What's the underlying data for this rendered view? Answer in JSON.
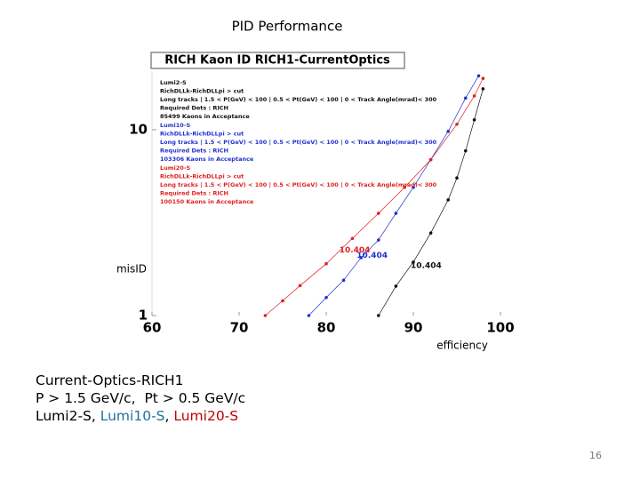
{
  "chart_data": {
    "type": "line",
    "title": "PID  Performance",
    "subtitle": "RICH Kaon ID   RICH1-CurrentOptics",
    "x_label": "efficiency",
    "y_label": "misID",
    "xlim": [
      60,
      100
    ],
    "ylim": [
      1,
      20
    ],
    "xticks": [
      60,
      70,
      80,
      90,
      100
    ],
    "yticks": [
      1,
      10
    ],
    "log_y": true,
    "grid": false,
    "series": [
      {
        "name": "Lumi2-S",
        "color": "#111111",
        "details": [
          "RichDLLk-RichDLLpi > cut",
          "Long tracks | 1.5 < P(GeV) < 100 | 0.5 < Pt(GeV) < 100 | 0 < Track Angle(mrad)< 300",
          "Required Dets : RICH",
          "85499 Kaons in Acceptance"
        ],
        "x": [
          86,
          88,
          90,
          92,
          94,
          95,
          96,
          97,
          98
        ],
        "values": [
          1.0,
          1.44,
          1.94,
          2.78,
          4.19,
          5.5,
          7.7,
          11.3,
          16.6
        ]
      },
      {
        "name": "Lumi10-S",
        "color": "#2233cc",
        "details": [
          "RichDLLk-RichDLLpi > cut",
          "Long tracks | 1.5 < P(GeV) < 100 | 0.5 < Pt(GeV) < 100 | 0 < Track Angle(mrad)< 300",
          "Required Dets : RICH",
          "103306 Kaons in Acceptance"
        ],
        "x": [
          78,
          80,
          82,
          84,
          86,
          88,
          90,
          92,
          94,
          96,
          97.5
        ],
        "values": [
          1.0,
          1.25,
          1.55,
          2.05,
          2.55,
          3.55,
          4.9,
          6.9,
          9.8,
          14.8,
          19.5
        ]
      },
      {
        "name": "Lumi20-S",
        "color": "#dd2222",
        "details": [
          "RichDLLk-RichDLLpi > cut",
          "Long tracks | 1.5 < P(GeV) < 100 | 0.5 < Pt(GeV) < 100 | 0 < Track Angle(mrad)< 300",
          "Required Dets : RICH",
          "100150 Kaons in Acceptance"
        ],
        "x": [
          73,
          75,
          77,
          80,
          83,
          86,
          89,
          92,
          95,
          97,
          98
        ],
        "values": [
          1.0,
          1.2,
          1.45,
          1.9,
          2.6,
          3.55,
          4.9,
          6.9,
          10.7,
          15.2,
          18.9
        ]
      }
    ],
    "annotations": [
      {
        "text": "10.404",
        "series": 2,
        "x": 81.5,
        "y": 2.25
      },
      {
        "text": "10.404",
        "series": 1,
        "x": 83.5,
        "y": 2.1
      },
      {
        "text": "10.404",
        "series": 0,
        "x": 89.7,
        "y": 1.85
      }
    ]
  },
  "caption": {
    "lines": [
      "Current-Optics-RICH1",
      "P > 1.5 GeV/c,  Pt > 0.5 GeV/c"
    ],
    "parts": [
      {
        "text": "Lumi2-S, ",
        "color": "#000000"
      },
      {
        "text": "Lumi10-S",
        "color": "#1f6fa0"
      },
      {
        "text": ", ",
        "color": "#000000"
      },
      {
        "text": "Lumi20-S",
        "color": "#c00000"
      }
    ]
  },
  "page_number": "16"
}
